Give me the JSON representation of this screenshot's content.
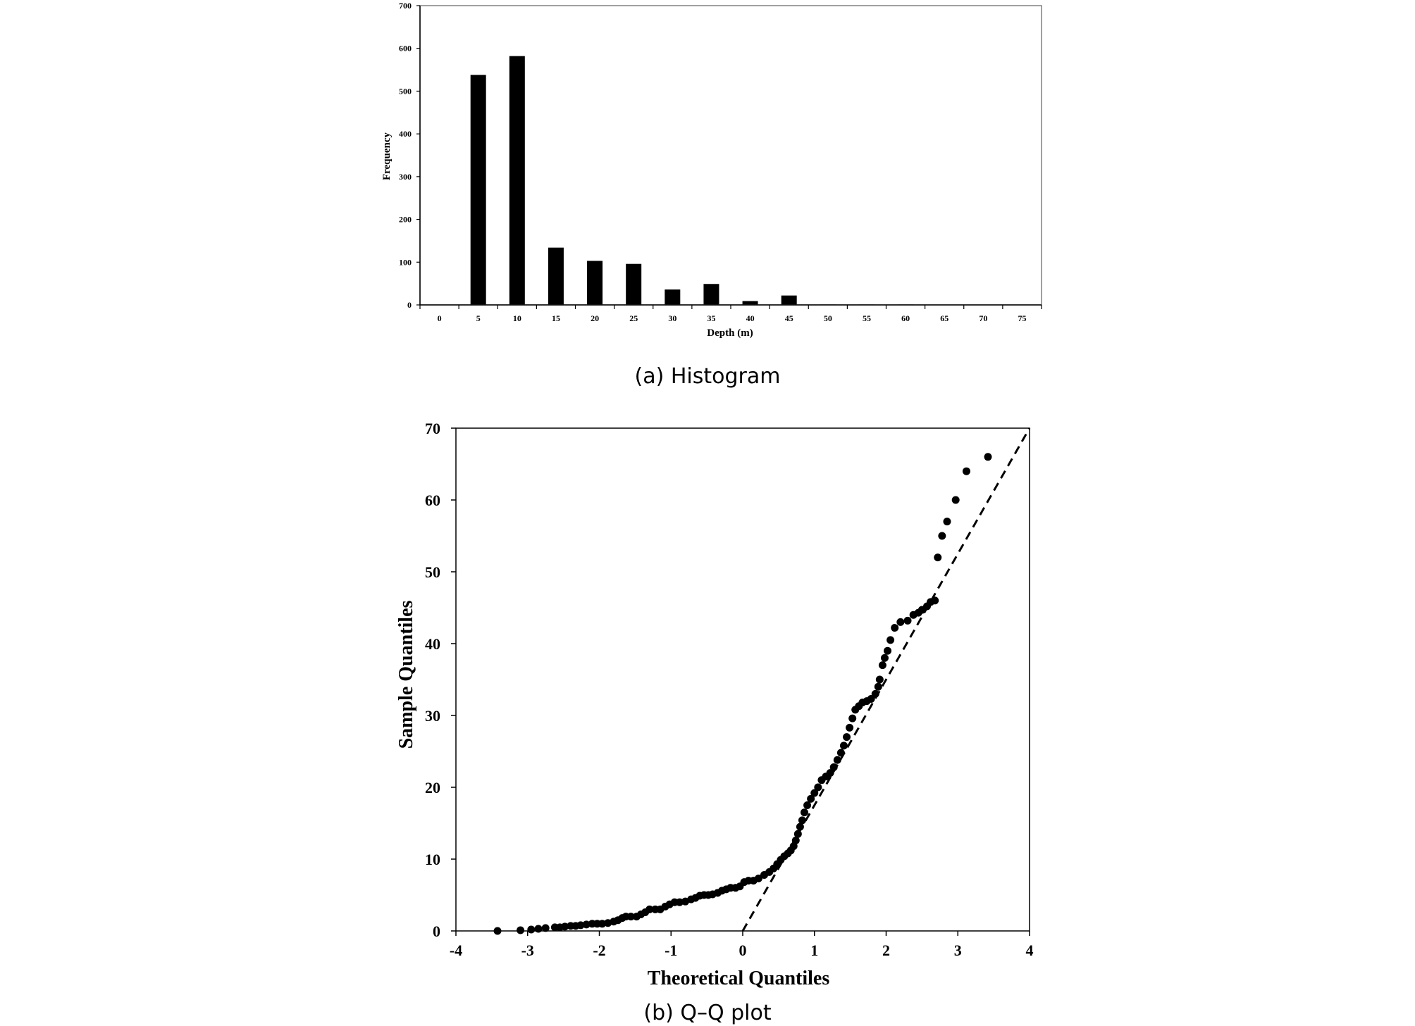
{
  "chart_data": [
    {
      "type": "bar",
      "categories": [
        "0",
        "5",
        "10",
        "15",
        "20",
        "25",
        "30",
        "35",
        "40",
        "45",
        "50",
        "55",
        "60",
        "65",
        "70",
        "75"
      ],
      "values": [
        0,
        538,
        582,
        134,
        103,
        96,
        36,
        49,
        9,
        22,
        1,
        1,
        1,
        0,
        0,
        0
      ],
      "xlabel": "Depth (m)",
      "ylabel": "Frequency",
      "ylim": [
        0,
        700
      ],
      "yticks": [
        "0",
        "100",
        "200",
        "300",
        "400",
        "500",
        "600",
        "700"
      ],
      "caption": "(a) Histogram",
      "grid": false,
      "bar_color": "#000000"
    },
    {
      "type": "scatter",
      "xlabel": "Theoretical Quantiles",
      "ylabel": "Sample Quantiles",
      "xlim": [
        -4,
        4
      ],
      "ylim": [
        0,
        70
      ],
      "xticks": [
        "-4",
        "-3",
        "-2",
        "-1",
        "0",
        "1",
        "2",
        "3",
        "4"
      ],
      "yticks": [
        "0",
        "10",
        "20",
        "30",
        "40",
        "50",
        "60",
        "70"
      ],
      "caption": "(b) Q–Q plot",
      "grid": false,
      "point_color": "#000000",
      "reference_line": {
        "style": "dashed",
        "from": [
          0,
          0
        ],
        "to": [
          4,
          70
        ]
      },
      "points": [
        [
          -3.42,
          0
        ],
        [
          -3.1,
          0.1
        ],
        [
          -2.95,
          0.2
        ],
        [
          -2.85,
          0.3
        ],
        [
          -2.75,
          0.4
        ],
        [
          -2.62,
          0.5
        ],
        [
          -2.55,
          0.5
        ],
        [
          -2.48,
          0.6
        ],
        [
          -2.4,
          0.7
        ],
        [
          -2.33,
          0.7
        ],
        [
          -2.26,
          0.8
        ],
        [
          -2.18,
          0.9
        ],
        [
          -2.1,
          1
        ],
        [
          -2.03,
          1
        ],
        [
          -1.96,
          1
        ],
        [
          -1.88,
          1.1
        ],
        [
          -1.8,
          1.3
        ],
        [
          -1.74,
          1.5
        ],
        [
          -1.68,
          1.8
        ],
        [
          -1.63,
          2
        ],
        [
          -1.56,
          2
        ],
        [
          -1.48,
          2
        ],
        [
          -1.42,
          2.3
        ],
        [
          -1.36,
          2.6
        ],
        [
          -1.3,
          3
        ],
        [
          -1.22,
          3
        ],
        [
          -1.15,
          3
        ],
        [
          -1.08,
          3.4
        ],
        [
          -1.02,
          3.7
        ],
        [
          -0.95,
          4
        ],
        [
          -0.88,
          4
        ],
        [
          -0.8,
          4.1
        ],
        [
          -0.72,
          4.4
        ],
        [
          -0.66,
          4.6
        ],
        [
          -0.6,
          4.9
        ],
        [
          -0.54,
          5
        ],
        [
          -0.48,
          5
        ],
        [
          -0.42,
          5.1
        ],
        [
          -0.35,
          5.3
        ],
        [
          -0.29,
          5.6
        ],
        [
          -0.23,
          5.8
        ],
        [
          -0.17,
          6
        ],
        [
          -0.1,
          6
        ],
        [
          -0.04,
          6.2
        ],
        [
          0.02,
          6.8
        ],
        [
          0.08,
          7
        ],
        [
          0.15,
          7
        ],
        [
          0.22,
          7.3
        ],
        [
          0.3,
          7.8
        ],
        [
          0.37,
          8.2
        ],
        [
          0.43,
          8.7
        ],
        [
          0.48,
          9.3
        ],
        [
          0.53,
          9.9
        ],
        [
          0.58,
          10.4
        ],
        [
          0.63,
          10.8
        ],
        [
          0.67,
          11.2
        ],
        [
          0.71,
          11.8
        ],
        [
          0.74,
          12.6
        ],
        [
          0.77,
          13.5
        ],
        [
          0.8,
          14.5
        ],
        [
          0.83,
          15.4
        ],
        [
          0.86,
          16.5
        ],
        [
          0.9,
          17.5
        ],
        [
          0.95,
          18.4
        ],
        [
          1.0,
          19.2
        ],
        [
          1.05,
          20
        ],
        [
          1.1,
          21
        ],
        [
          1.16,
          21.5
        ],
        [
          1.22,
          22
        ],
        [
          1.27,
          22.8
        ],
        [
          1.32,
          23.8
        ],
        [
          1.37,
          24.8
        ],
        [
          1.41,
          25.8
        ],
        [
          1.45,
          27
        ],
        [
          1.49,
          28.3
        ],
        [
          1.53,
          29.6
        ],
        [
          1.57,
          30.8
        ],
        [
          1.62,
          31.3
        ],
        [
          1.67,
          31.8
        ],
        [
          1.73,
          32
        ],
        [
          1.79,
          32.3
        ],
        [
          1.85,
          33
        ],
        [
          1.89,
          34
        ],
        [
          1.91,
          35
        ],
        [
          1.95,
          37
        ],
        [
          1.98,
          38
        ],
        [
          2.02,
          39
        ],
        [
          2.06,
          40.5
        ],
        [
          2.12,
          42.2
        ],
        [
          2.2,
          43
        ],
        [
          2.3,
          43.2
        ],
        [
          2.38,
          44
        ],
        [
          2.45,
          44.3
        ],
        [
          2.5,
          44.7
        ],
        [
          2.57,
          45.2
        ],
        [
          2.62,
          45.8
        ],
        [
          2.68,
          46
        ],
        [
          2.72,
          52
        ],
        [
          2.78,
          55
        ],
        [
          2.85,
          57
        ],
        [
          2.97,
          60
        ],
        [
          3.12,
          64
        ],
        [
          3.42,
          66
        ]
      ]
    }
  ]
}
